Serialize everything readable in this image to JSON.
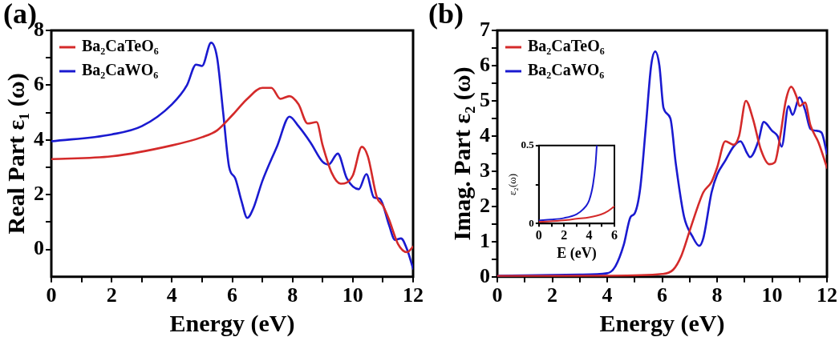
{
  "chart_data": [
    {
      "type": "line",
      "title": "(a)",
      "xlabel": "Energy (eV)",
      "ylabel": "Real Part ε₁ (ω)",
      "xlim": [
        0,
        12
      ],
      "xticks": [
        0,
        {
          "value": 1,
          "label": null
        },
        2,
        {
          "value": 3,
          "label": null
        },
        4,
        {
          "value": 5,
          "label": null
        },
        6,
        {
          "value": 7,
          "label": null
        },
        8,
        {
          "value": 9,
          "label": null
        },
        10,
        {
          "value": 11,
          "label": null
        },
        12
      ],
      "ylim": [
        -1,
        8
      ],
      "yticks": [
        0,
        {
          "value": 1,
          "label": null
        },
        2,
        {
          "value": 3,
          "label": null
        },
        4,
        {
          "value": 5,
          "label": null
        },
        6,
        {
          "value": 7,
          "label": null
        },
        8
      ],
      "grid": false,
      "legend": "top left",
      "marker": "none",
      "series": [
        {
          "name": "Ba₂CaTeO₆",
          "color": "#d42a2a",
          "x": [
            0,
            2,
            4,
            5,
            5.5,
            6,
            6.5,
            7,
            7.3,
            7.6,
            7.9,
            8.2,
            8.5,
            8.8,
            9.0,
            9.3,
            9.6,
            10,
            10.3,
            10.5,
            10.8,
            11,
            11.2,
            11.5,
            11.8,
            12
          ],
          "values": [
            3.3,
            3.4,
            3.8,
            4.1,
            4.35,
            4.9,
            5.5,
            5.9,
            5.9,
            5.5,
            5.6,
            5.3,
            4.6,
            4.65,
            3.8,
            2.8,
            2.4,
            2.7,
            3.75,
            3.4,
            1.9,
            1.6,
            1.1,
            0.2,
            -0.1,
            0.1
          ]
        },
        {
          "name": "Ba₂CaWO₆",
          "color": "#1a1ad0",
          "x": [
            0,
            2,
            3,
            4,
            4.5,
            4.8,
            5.0,
            5.3,
            5.5,
            5.7,
            5.9,
            6.1,
            6.3,
            6.5,
            6.7,
            7.0,
            7.5,
            7.9,
            8.2,
            8.6,
            9.0,
            9.2,
            9.5,
            9.8,
            10.2,
            10.45,
            10.7,
            10.9,
            11.2,
            11.4,
            11.6,
            11.8,
            12
          ],
          "values": [
            3.95,
            4.2,
            4.5,
            5.3,
            6.0,
            6.75,
            6.7,
            7.55,
            7.0,
            5.0,
            3.0,
            2.6,
            1.8,
            1.15,
            1.5,
            2.5,
            3.8,
            4.85,
            4.5,
            3.9,
            3.2,
            3.1,
            3.5,
            2.6,
            2.2,
            2.75,
            1.9,
            1.85,
            0.9,
            0.35,
            0.4,
            0,
            -0.7
          ]
        }
      ]
    },
    {
      "type": "line",
      "title": "(b)",
      "xlabel": "Energy (eV)",
      "ylabel": "Imag. Part ε₂ (ω)",
      "xlim": [
        0,
        12
      ],
      "xticks": [
        0,
        {
          "value": 1,
          "label": null
        },
        2,
        {
          "value": 3,
          "label": null
        },
        4,
        {
          "value": 5,
          "label": null
        },
        6,
        {
          "value": 7,
          "label": null
        },
        8,
        {
          "value": 9,
          "label": null
        },
        10,
        {
          "value": 11,
          "label": null
        },
        12
      ],
      "ylim": [
        0,
        7
      ],
      "yticks": [
        0,
        {
          "value": 0.5,
          "label": null
        },
        1,
        {
          "value": 1.5,
          "label": null
        },
        2,
        {
          "value": 2.5,
          "label": null
        },
        3,
        {
          "value": 3.5,
          "label": null
        },
        4,
        {
          "value": 4.5,
          "label": null
        },
        5,
        {
          "value": 5.5,
          "label": null
        },
        6,
        {
          "value": 6.5,
          "label": null
        },
        7
      ],
      "grid": false,
      "legend": "top left",
      "marker": "none",
      "series": [
        {
          "name": "Ba₂CaTeO₆",
          "color": "#d42a2a",
          "x": [
            0,
            4,
            6,
            6.4,
            6.7,
            7.0,
            7.3,
            7.5,
            7.8,
            8.0,
            8.3,
            8.6,
            8.8,
            9.05,
            9.3,
            9.6,
            9.9,
            10.1,
            10.3,
            10.5,
            10.7,
            10.9,
            11.0,
            11.2,
            11.4,
            11.7,
            12
          ],
          "values": [
            0.02,
            0.03,
            0.08,
            0.2,
            0.6,
            1.3,
            2.0,
            2.4,
            2.7,
            3.1,
            3.85,
            3.75,
            4.0,
            5.0,
            4.5,
            3.6,
            3.2,
            3.25,
            4.0,
            5.0,
            5.4,
            5.1,
            4.85,
            4.95,
            4.3,
            3.8,
            3.1
          ]
        },
        {
          "name": "Ba₂CaWO₆",
          "color": "#1a1ad0",
          "x": [
            0,
            3,
            4,
            4.3,
            4.6,
            4.85,
            5.0,
            5.2,
            5.4,
            5.6,
            5.75,
            5.9,
            6.05,
            6.3,
            6.5,
            6.8,
            7.1,
            7.35,
            7.5,
            7.8,
            8.0,
            8.3,
            8.6,
            8.85,
            9.1,
            9.2,
            9.5,
            9.7,
            10.0,
            10.2,
            10.35,
            10.6,
            10.75,
            11.0,
            11.2,
            11.4,
            11.6,
            11.8,
            12
          ],
          "values": [
            0.03,
            0.06,
            0.1,
            0.3,
            0.9,
            1.7,
            1.8,
            2.5,
            4.2,
            6.0,
            6.4,
            6.0,
            4.8,
            4.5,
            3.2,
            1.7,
            1.15,
            0.88,
            1.1,
            2.4,
            2.9,
            3.3,
            3.7,
            3.85,
            3.5,
            3.4,
            3.85,
            4.4,
            4.15,
            4.0,
            3.7,
            4.85,
            4.6,
            5.1,
            4.75,
            4.2,
            4.15,
            4.1,
            3.5
          ]
        }
      ]
    },
    {
      "type": "line",
      "xlabel": "E (eV)",
      "ylabel": "ε₂(ω)",
      "xlim": [
        0,
        6
      ],
      "xticks": [
        0,
        {
          "value": 1,
          "label": null
        },
        2,
        {
          "value": 3,
          "label": null
        },
        4,
        {
          "value": 5,
          "label": null
        },
        6
      ],
      "ylim": [
        0,
        0.5
      ],
      "yticks": [
        0,
        {
          "value": 0.25,
          "label": null
        },
        0.5
      ],
      "grid": false,
      "marker": "none",
      "series": [
        {
          "color": "#d42a2a",
          "x": [
            0,
            2,
            3,
            4,
            5,
            5.5,
            6
          ],
          "values": [
            0.01,
            0.02,
            0.03,
            0.04,
            0.06,
            0.08,
            0.11
          ]
        },
        {
          "color": "#1a1ad0",
          "x": [
            0,
            1,
            2,
            3,
            3.5,
            4,
            4.3,
            4.5,
            4.6
          ],
          "values": [
            0.02,
            0.025,
            0.035,
            0.06,
            0.09,
            0.15,
            0.25,
            0.38,
            0.5
          ]
        }
      ]
    }
  ]
}
